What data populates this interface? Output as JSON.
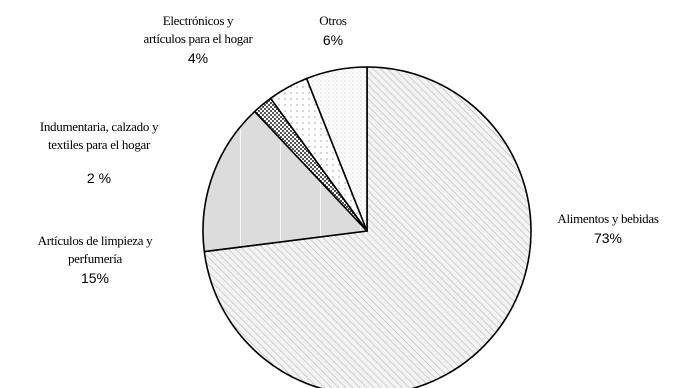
{
  "chart_data": {
    "type": "pie",
    "title": "",
    "slices": [
      {
        "label_lines": [
          "Alimentos y bebidas"
        ],
        "value": 73,
        "value_label": "73%",
        "pattern": "diagonal-hatch"
      },
      {
        "label_lines": [
          "Artículos de limpieza y",
          "perfumería"
        ],
        "value": 15,
        "value_label": "15%",
        "pattern": "light-gray-vertical-lines"
      },
      {
        "label_lines": [
          "Indumentaria, calzado y",
          "textiles para el hogar"
        ],
        "value": 2,
        "value_label": "2 %",
        "pattern": "checker"
      },
      {
        "label_lines": [
          "Electrónicos y",
          "artículos para el hogar"
        ],
        "value": 4,
        "value_label": "4%",
        "pattern": "sparse-dots"
      },
      {
        "label_lines": [
          "Otros"
        ],
        "value": 6,
        "value_label": "6%",
        "pattern": "fine-dots"
      }
    ],
    "start_angle_deg": 0,
    "direction": "clockwise",
    "legend": "none"
  }
}
